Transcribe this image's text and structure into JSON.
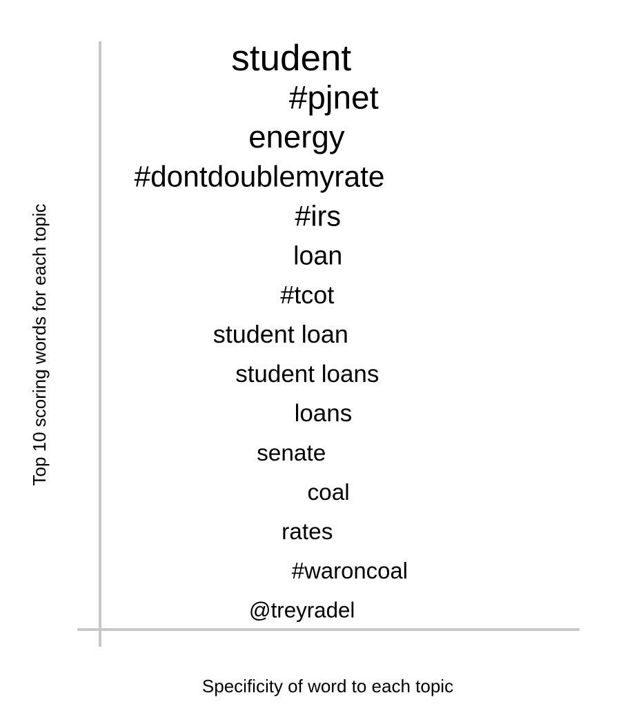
{
  "chart_data": {
    "type": "scatter",
    "title": "",
    "xlabel": "Specificity of word to each topic",
    "ylabel": "Top 10 scoring words for each topic",
    "grid": false,
    "legend": "none",
    "axis_color": "#c8c8c8",
    "text_color": "#000000",
    "points": [
      {
        "label": "student",
        "specificity": 0.36,
        "size": 1.0
      },
      {
        "label": "#pjnet",
        "specificity": 0.44,
        "size": 0.9
      },
      {
        "label": "energy",
        "specificity": 0.37,
        "size": 0.86
      },
      {
        "label": "#dontdoublemyrate",
        "specificity": 0.3,
        "size": 0.8
      },
      {
        "label": "#irs",
        "specificity": 0.41,
        "size": 0.78
      },
      {
        "label": "loan",
        "specificity": 0.41,
        "size": 0.71
      },
      {
        "label": "#tcot",
        "specificity": 0.39,
        "size": 0.68
      },
      {
        "label": "student loan",
        "specificity": 0.34,
        "size": 0.68
      },
      {
        "label": "student loans",
        "specificity": 0.39,
        "size": 0.66
      },
      {
        "label": "loans",
        "specificity": 0.42,
        "size": 0.66
      },
      {
        "label": "senate",
        "specificity": 0.36,
        "size": 0.63
      },
      {
        "label": "coal",
        "specificity": 0.43,
        "size": 0.63
      },
      {
        "label": "rates",
        "specificity": 0.39,
        "size": 0.63
      },
      {
        "label": "#waroncoal",
        "specificity": 0.47,
        "size": 0.62
      },
      {
        "label": "@treyradel",
        "specificity": 0.38,
        "size": 0.59
      }
    ]
  }
}
